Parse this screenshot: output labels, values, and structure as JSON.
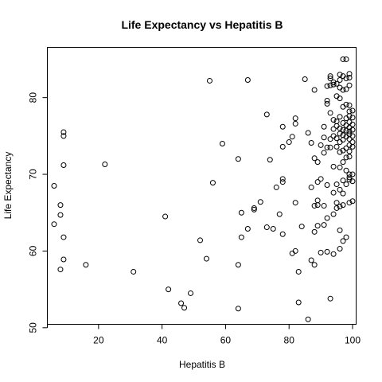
{
  "chart_data": {
    "type": "scatter",
    "title": "Life Expectancy vs  Hepatitis B",
    "xlabel": "Hepatitis B",
    "ylabel": "Life Expectancy",
    "xlim": [
      4,
      101
    ],
    "ylim": [
      50.5,
      86.5
    ],
    "xticks": [
      20,
      40,
      60,
      80,
      100
    ],
    "yticks": [
      50,
      60,
      70,
      80
    ],
    "xtick_labels": [
      "20",
      "40",
      "60",
      "80",
      "100"
    ],
    "ytick_labels": [
      "50",
      "60",
      "70",
      "80"
    ],
    "grid": false,
    "legend": "none",
    "marker": "open-circle",
    "points": [
      [
        6,
        68.5
      ],
      [
        6,
        63.5
      ],
      [
        8,
        66
      ],
      [
        8,
        64.7
      ],
      [
        8,
        57.6
      ],
      [
        9,
        61.8
      ],
      [
        9,
        58.9
      ],
      [
        9,
        75.5
      ],
      [
        9,
        75.0
      ],
      [
        9,
        71.2
      ],
      [
        16,
        58.2
      ],
      [
        22,
        71.3
      ],
      [
        31,
        57.3
      ],
      [
        41,
        64.5
      ],
      [
        42,
        55.0
      ],
      [
        46,
        53.2
      ],
      [
        47,
        52.6
      ],
      [
        49,
        54.5
      ],
      [
        52,
        61.4
      ],
      [
        54,
        59.0
      ],
      [
        55,
        82.2
      ],
      [
        56,
        68.9
      ],
      [
        59,
        74.0
      ],
      [
        64,
        72.0
      ],
      [
        64,
        58.2
      ],
      [
        64,
        52.5
      ],
      [
        65,
        65.0
      ],
      [
        65,
        61.8
      ],
      [
        67,
        82.3
      ],
      [
        67,
        62.9
      ],
      [
        69,
        65.6
      ],
      [
        69,
        65.4
      ],
      [
        71,
        66.4
      ],
      [
        73,
        77.8
      ],
      [
        73,
        63.1
      ],
      [
        74,
        71.9
      ],
      [
        75,
        62.9
      ],
      [
        76,
        68.3
      ],
      [
        77,
        64.8
      ],
      [
        78,
        76.2
      ],
      [
        78,
        73.6
      ],
      [
        78,
        69.4
      ],
      [
        78,
        69.0
      ],
      [
        78,
        62.2
      ],
      [
        80,
        74.2
      ],
      [
        81,
        74.9
      ],
      [
        81,
        59.7
      ],
      [
        82,
        77.3
      ],
      [
        82,
        76.6
      ],
      [
        82,
        66.3
      ],
      [
        82,
        60.0
      ],
      [
        83,
        53.3
      ],
      [
        83,
        57.3
      ],
      [
        84,
        63.2
      ],
      [
        85,
        82.4
      ],
      [
        86,
        51.1
      ],
      [
        86,
        75.4
      ],
      [
        87,
        74.1
      ],
      [
        87,
        68.3
      ],
      [
        87,
        58.8
      ],
      [
        88,
        81.0
      ],
      [
        88,
        72.1
      ],
      [
        88,
        65.9
      ],
      [
        88,
        62.5
      ],
      [
        88,
        58.2
      ],
      [
        89,
        71.6
      ],
      [
        89,
        69.0
      ],
      [
        89,
        66.6
      ],
      [
        89,
        66.0
      ],
      [
        89,
        63.3
      ],
      [
        90,
        73.8
      ],
      [
        90,
        69.4
      ],
      [
        90,
        59.8
      ],
      [
        91,
        76.2
      ],
      [
        91,
        74.8
      ],
      [
        91,
        72.8
      ],
      [
        91,
        65.9
      ],
      [
        91,
        63.4
      ],
      [
        92,
        79.6
      ],
      [
        92,
        79.2
      ],
      [
        92,
        81.5
      ],
      [
        92,
        73.5
      ],
      [
        92,
        68.6
      ],
      [
        92,
        64.3
      ],
      [
        92,
        59.9
      ],
      [
        93,
        82.8
      ],
      [
        93,
        82.5
      ],
      [
        93,
        81.6
      ],
      [
        93,
        78.0
      ],
      [
        93,
        74.6
      ],
      [
        93,
        73.5
      ],
      [
        93,
        53.8
      ],
      [
        94,
        82.0
      ],
      [
        94,
        81.7
      ],
      [
        94,
        77.1
      ],
      [
        94,
        75.9
      ],
      [
        94,
        75.0
      ],
      [
        94,
        71.0
      ],
      [
        94,
        67.6
      ],
      [
        94,
        64.8
      ],
      [
        94,
        59.6
      ],
      [
        95,
        81.8
      ],
      [
        95,
        80.2
      ],
      [
        95,
        76.9
      ],
      [
        95,
        76.3
      ],
      [
        95,
        74.7
      ],
      [
        95,
        73.6
      ],
      [
        95,
        68.7
      ],
      [
        95,
        66.3
      ],
      [
        95,
        65.6
      ],
      [
        96,
        83.0
      ],
      [
        96,
        82.3
      ],
      [
        96,
        81.3
      ],
      [
        96,
        79.9
      ],
      [
        96,
        77.5
      ],
      [
        96,
        76.0
      ],
      [
        96,
        75.3
      ],
      [
        96,
        74.2
      ],
      [
        96,
        72.9
      ],
      [
        96,
        70.9
      ],
      [
        96,
        68.0
      ],
      [
        96,
        65.8
      ],
      [
        96,
        62.7
      ],
      [
        96,
        60.3
      ],
      [
        97,
        85.0
      ],
      [
        97,
        82.8
      ],
      [
        97,
        81.0
      ],
      [
        97,
        78.8
      ],
      [
        97,
        76.7
      ],
      [
        97,
        75.8
      ],
      [
        97,
        75.1
      ],
      [
        97,
        74.5
      ],
      [
        97,
        73.1
      ],
      [
        97,
        71.6
      ],
      [
        97,
        69.2
      ],
      [
        97,
        67.5
      ],
      [
        97,
        66.0
      ],
      [
        97,
        61.3
      ],
      [
        98,
        85.0
      ],
      [
        98,
        82.5
      ],
      [
        98,
        81.1
      ],
      [
        98,
        79.1
      ],
      [
        98,
        77.3
      ],
      [
        98,
        76.4
      ],
      [
        98,
        75.7
      ],
      [
        98,
        74.9
      ],
      [
        98,
        73.4
      ],
      [
        98,
        72.2
      ],
      [
        98,
        70.5
      ],
      [
        98,
        68.7
      ],
      [
        98,
        61.8
      ],
      [
        99,
        83.1
      ],
      [
        99,
        82.6
      ],
      [
        99,
        81.6
      ],
      [
        99,
        79.0
      ],
      [
        99,
        78.2
      ],
      [
        99,
        77.6
      ],
      [
        99,
        76.8
      ],
      [
        99,
        76.1
      ],
      [
        99,
        75.6
      ],
      [
        99,
        75.2
      ],
      [
        99,
        74.6
      ],
      [
        99,
        73.8
      ],
      [
        99,
        73.0
      ],
      [
        99,
        72.3
      ],
      [
        99,
        70.0
      ],
      [
        99,
        69.6
      ],
      [
        99,
        69.3
      ],
      [
        99,
        66.3
      ],
      [
        100,
        78.3
      ],
      [
        100,
        77.4
      ],
      [
        100,
        76.5
      ],
      [
        100,
        75.8
      ],
      [
        100,
        75.0
      ],
      [
        100,
        74.2
      ],
      [
        100,
        73.6
      ],
      [
        100,
        70.0
      ],
      [
        100,
        69.1
      ],
      [
        100,
        66.5
      ]
    ]
  }
}
